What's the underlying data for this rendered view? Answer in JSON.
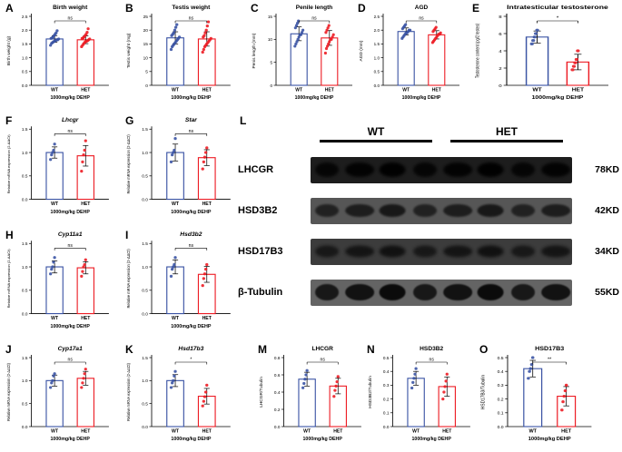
{
  "colors": {
    "wt": "#3a53a4",
    "het": "#ed1c24"
  },
  "groups": [
    "WT",
    "HET"
  ],
  "x_caption": "1000mg/kg DEHP",
  "chart_data": [
    {
      "type": "bar",
      "letter": "A",
      "title": "Birth weight",
      "italic": false,
      "ylabel": "Birth weight (g)",
      "xlabel": "1000mg/kg DEHP",
      "categories": [
        "WT",
        "HET"
      ],
      "values": [
        1.68,
        1.65
      ],
      "errors": [
        0.12,
        0.14
      ],
      "sig": "ns",
      "ylim": [
        0,
        2.5
      ],
      "yticks": [
        0,
        0.5,
        1.0,
        1.5,
        2.0,
        2.5
      ],
      "tick_decimals": 1,
      "points": [
        [
          1.45,
          1.52,
          1.55,
          1.58,
          1.6,
          1.62,
          1.65,
          1.65,
          1.68,
          1.7,
          1.72,
          1.75,
          1.8,
          1.85,
          1.9,
          1.98
        ],
        [
          1.4,
          1.45,
          1.5,
          1.55,
          1.58,
          1.6,
          1.62,
          1.65,
          1.68,
          1.7,
          1.72,
          1.75,
          1.8,
          1.85,
          1.92,
          2.05
        ]
      ]
    },
    {
      "type": "bar",
      "letter": "B",
      "title": "Testis weight",
      "italic": false,
      "ylabel": "Testis weight (mg)",
      "xlabel": "1000mg/kg DEHP",
      "categories": [
        "WT",
        "HET"
      ],
      "values": [
        17.2,
        16.8
      ],
      "errors": [
        2.2,
        2.6
      ],
      "sig": "ns",
      "ylim": [
        0,
        25
      ],
      "yticks": [
        0,
        5,
        10,
        15,
        20,
        25
      ],
      "tick_decimals": 0,
      "points": [
        [
          13,
          14,
          14.5,
          15,
          15.5,
          16,
          16.5,
          17,
          17.5,
          18,
          18.5,
          19,
          20,
          21,
          22
        ],
        [
          12,
          13,
          14,
          14.5,
          15,
          15.5,
          16,
          16.5,
          17,
          17.5,
          18,
          19,
          20,
          21.5,
          23
        ]
      ]
    },
    {
      "type": "bar",
      "letter": "C",
      "title": "Penile length",
      "italic": false,
      "ylabel": "Penis length (mm)",
      "xlabel": "1000mg/kg DEHP",
      "categories": [
        "WT",
        "HET"
      ],
      "values": [
        11.2,
        10.3
      ],
      "errors": [
        1.5,
        1.6
      ],
      "sig": "ns",
      "ylim": [
        0,
        15
      ],
      "yticks": [
        0,
        5,
        10,
        15
      ],
      "tick_decimals": 0,
      "points": [
        [
          8.5,
          9,
          9.5,
          10,
          10.5,
          11,
          11,
          11.5,
          12,
          12.5,
          13,
          13.5,
          14
        ],
        [
          7,
          8,
          8.5,
          9,
          9.5,
          10,
          10,
          10.5,
          11,
          11.5,
          12,
          12.5,
          13
        ]
      ]
    },
    {
      "type": "bar",
      "letter": "D",
      "title": "AGD",
      "italic": false,
      "ylabel": "AGD (mm)",
      "xlabel": "1000mg/kg DEHP",
      "categories": [
        "WT",
        "HET"
      ],
      "values": [
        1.95,
        1.83
      ],
      "errors": [
        0.13,
        0.15
      ],
      "sig": "ns",
      "ylim": [
        0,
        2.5
      ],
      "yticks": [
        0,
        0.5,
        1.0,
        1.5,
        2.0,
        2.5
      ],
      "tick_decimals": 1,
      "points": [
        [
          1.7,
          1.75,
          1.8,
          1.85,
          1.9,
          1.9,
          1.95,
          2.0,
          2.0,
          2.05,
          2.1,
          2.15,
          2.2
        ],
        [
          1.55,
          1.6,
          1.65,
          1.7,
          1.75,
          1.8,
          1.85,
          1.85,
          1.9,
          1.95,
          2.0,
          2.05,
          2.1
        ]
      ]
    },
    {
      "type": "bar",
      "letter": "E",
      "title": "Intratesticular testosterone",
      "italic": false,
      "ylabel": "Testosterone content (pg/2 testes)",
      "xlabel": "1000mg/kg DEHP",
      "categories": [
        "WT",
        "HET"
      ],
      "values": [
        5.6,
        2.7
      ],
      "errors": [
        0.7,
        0.9
      ],
      "sig": "*",
      "ylim": [
        0,
        8
      ],
      "yticks": [
        0,
        2,
        4,
        6,
        8
      ],
      "tick_decimals": 0,
      "points": [
        [
          4.8,
          5.2,
          5.6,
          6.0,
          6.4
        ],
        [
          1.8,
          2.2,
          2.6,
          3.0,
          4.0
        ]
      ]
    },
    {
      "type": "bar",
      "letter": "F",
      "title": "Lhcgr",
      "italic": true,
      "ylabel": "Relative mRNA expression (2-ΔΔCt)",
      "xlabel": "1000mg/kg DEHP",
      "categories": [
        "WT",
        "HET"
      ],
      "values": [
        1.0,
        0.93
      ],
      "errors": [
        0.12,
        0.22
      ],
      "sig": "ns",
      "ylim": [
        0,
        1.5
      ],
      "yticks": [
        0,
        0.5,
        1.0,
        1.5
      ],
      "tick_decimals": 1,
      "points": [
        [
          0.85,
          0.95,
          1.0,
          1.05,
          1.18
        ],
        [
          0.6,
          0.8,
          0.95,
          1.05,
          1.25
        ]
      ]
    },
    {
      "type": "bar",
      "letter": "G",
      "title": "Star",
      "italic": true,
      "ylabel": "Relative mRNA expression (2-ΔΔCt)",
      "xlabel": "1000mg/kg DEHP",
      "categories": [
        "WT",
        "HET"
      ],
      "values": [
        1.0,
        0.89
      ],
      "errors": [
        0.18,
        0.17
      ],
      "sig": "ns",
      "ylim": [
        0,
        1.5
      ],
      "yticks": [
        0,
        0.5,
        1.0,
        1.5
      ],
      "tick_decimals": 1,
      "points": [
        [
          0.8,
          0.95,
          1.0,
          1.05,
          1.3
        ],
        [
          0.65,
          0.8,
          0.9,
          1.0,
          1.1
        ]
      ]
    },
    {
      "type": "bar",
      "letter": "H",
      "title": "Cyp11a1",
      "italic": true,
      "ylabel": "Relative mRNA expression (2-ΔΔCt)",
      "xlabel": "1000mg/kg DEHP",
      "categories": [
        "WT",
        "HET"
      ],
      "values": [
        1.0,
        0.98
      ],
      "errors": [
        0.13,
        0.13
      ],
      "sig": "ns",
      "ylim": [
        0,
        1.5
      ],
      "yticks": [
        0,
        0.5,
        1.0,
        1.5
      ],
      "tick_decimals": 1,
      "points": [
        [
          0.85,
          0.95,
          1.0,
          1.1,
          1.2
        ],
        [
          0.8,
          0.9,
          1.0,
          1.05,
          1.15
        ]
      ]
    },
    {
      "type": "bar",
      "letter": "I",
      "title": "Hsd3b2",
      "italic": true,
      "ylabel": "Relative mRNA expression (2-ΔΔCt)",
      "xlabel": "1000mg/kg DEHP",
      "categories": [
        "WT",
        "HET"
      ],
      "values": [
        1.0,
        0.84
      ],
      "errors": [
        0.15,
        0.17
      ],
      "sig": "ns",
      "ylim": [
        0,
        1.5
      ],
      "yticks": [
        0,
        0.5,
        1.0,
        1.5
      ],
      "tick_decimals": 1,
      "points": [
        [
          0.8,
          0.95,
          1.0,
          1.05,
          1.2
        ],
        [
          0.6,
          0.75,
          0.85,
          0.95,
          1.05
        ]
      ]
    },
    {
      "type": "bar",
      "letter": "J",
      "title": "Cyp17a1",
      "italic": true,
      "ylabel": "Relative mRNA expression (2-ΔΔCt)",
      "xlabel": "1000mg/kg DEHP",
      "categories": [
        "WT",
        "HET"
      ],
      "values": [
        1.0,
        1.05
      ],
      "errors": [
        0.12,
        0.15
      ],
      "sig": "ns",
      "ylim": [
        0,
        1.5
      ],
      "yticks": [
        0,
        0.5,
        1.0,
        1.5
      ],
      "tick_decimals": 1,
      "points": [
        [
          0.85,
          0.95,
          1.0,
          1.1,
          1.15
        ],
        [
          0.85,
          0.95,
          1.05,
          1.15,
          1.25
        ]
      ]
    },
    {
      "type": "bar",
      "letter": "K",
      "title": "Hsd17b3",
      "italic": true,
      "ylabel": "Relative mRNA expression (2-ΔΔCt)",
      "xlabel": "1000mg/kg DEHP",
      "categories": [
        "WT",
        "HET"
      ],
      "values": [
        1.0,
        0.66
      ],
      "errors": [
        0.13,
        0.17
      ],
      "sig": "*",
      "ylim": [
        0,
        1.5
      ],
      "yticks": [
        0,
        0.5,
        1.0,
        1.5
      ],
      "tick_decimals": 1,
      "points": [
        [
          0.85,
          0.95,
          1.0,
          1.1,
          1.2
        ],
        [
          0.45,
          0.55,
          0.65,
          0.75,
          0.9
        ]
      ]
    },
    {
      "type": "bar",
      "letter": "M",
      "title": "LHCGR",
      "italic": false,
      "ylabel": "LHCGR/Tubulin",
      "xlabel": "1000mg/kg DEHP",
      "categories": [
        "WT",
        "HET"
      ],
      "values": [
        0.55,
        0.47
      ],
      "errors": [
        0.08,
        0.09
      ],
      "sig": "ns",
      "ylim": [
        0,
        0.8
      ],
      "yticks": [
        0,
        0.2,
        0.4,
        0.6,
        0.8
      ],
      "tick_decimals": 1,
      "points": [
        [
          0.45,
          0.5,
          0.55,
          0.6,
          0.65
        ],
        [
          0.35,
          0.42,
          0.47,
          0.52,
          0.58
        ]
      ]
    },
    {
      "type": "bar",
      "letter": "N",
      "title": "HSD3B2",
      "italic": false,
      "ylabel": "HSD3B2/Tubulin",
      "xlabel": "1000mg/kg DEHP",
      "categories": [
        "WT",
        "HET"
      ],
      "values": [
        0.35,
        0.29
      ],
      "errors": [
        0.05,
        0.07
      ],
      "sig": "ns",
      "ylim": [
        0,
        0.5
      ],
      "yticks": [
        0,
        0.1,
        0.2,
        0.3,
        0.4,
        0.5
      ],
      "tick_decimals": 1,
      "points": [
        [
          0.28,
          0.32,
          0.35,
          0.38,
          0.42
        ],
        [
          0.2,
          0.25,
          0.29,
          0.33,
          0.38
        ]
      ]
    },
    {
      "type": "bar",
      "letter": "O",
      "title": "HSD17B3",
      "italic": false,
      "ylabel": "HSD17B3/Tubulin",
      "xlabel": "1000mg/kg DEHP",
      "categories": [
        "WT",
        "HET"
      ],
      "values": [
        0.42,
        0.22
      ],
      "errors": [
        0.06,
        0.07
      ],
      "sig": "**",
      "ylim": [
        0,
        0.5
      ],
      "yticks": [
        0,
        0.1,
        0.2,
        0.3,
        0.4,
        0.5
      ],
      "tick_decimals": 1,
      "points": [
        [
          0.35,
          0.4,
          0.42,
          0.45,
          0.5
        ],
        [
          0.12,
          0.18,
          0.22,
          0.26,
          0.3
        ]
      ]
    }
  ],
  "blot": {
    "letter": "L",
    "group_headers": [
      "WT",
      "HET"
    ],
    "lanes_per_group": 4,
    "rows": [
      {
        "protein": "LHCGR",
        "size": "78KD"
      },
      {
        "protein": "HSD3B2",
        "size": "42KD"
      },
      {
        "protein": "HSD17B3",
        "size": "34KD"
      },
      {
        "protein": "β-Tubulin",
        "size": "55KD"
      }
    ]
  }
}
